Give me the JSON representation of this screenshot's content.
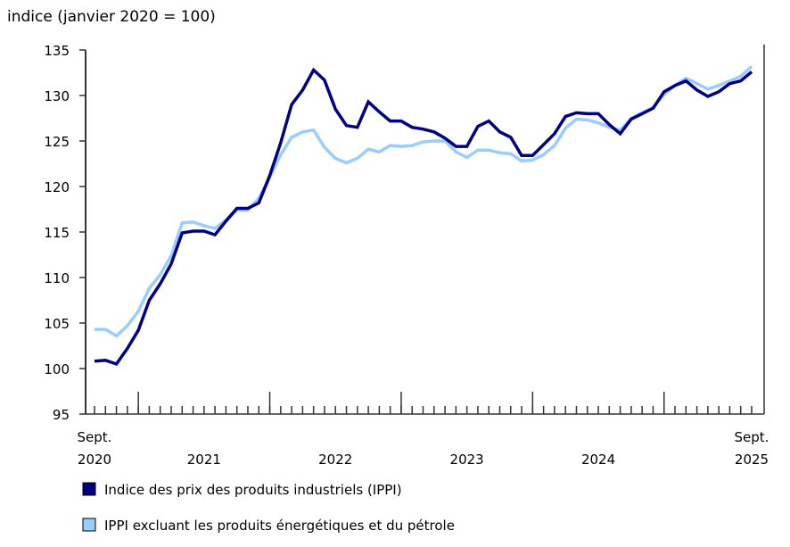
{
  "chart_data": {
    "type": "line",
    "ylabel": "indice (janvier 2020 = 100)",
    "ylim": [
      95,
      135
    ],
    "yticks": [
      95,
      100,
      105,
      110,
      115,
      120,
      125,
      130,
      135
    ],
    "x_start": "2020-09",
    "x_end": "2025-09",
    "x_tick_labels": [
      {
        "month": "2020-09",
        "line1": "Sept.",
        "line2": "2020"
      },
      {
        "month": "2021-07",
        "line1": "",
        "line2": "2021"
      },
      {
        "month": "2022-07",
        "line1": "",
        "line2": "2022"
      },
      {
        "month": "2023-07",
        "line1": "",
        "line2": "2023"
      },
      {
        "month": "2024-07",
        "line1": "",
        "line2": "2024"
      },
      {
        "month": "2025-09",
        "line1": "Sept.",
        "line2": "2025"
      }
    ],
    "grid": false,
    "legend_position": "bottom",
    "series": [
      {
        "name": "Indice des prix des produits industriels (IPPI)",
        "color": "#000080",
        "values": [
          100.8,
          100.9,
          100.5,
          102.2,
          104.2,
          107.5,
          109.3,
          111.5,
          114.9,
          115.1,
          115.1,
          114.7,
          116.2,
          117.6,
          117.6,
          118.2,
          121.2,
          124.8,
          129.0,
          130.6,
          132.8,
          131.7,
          128.5,
          126.7,
          126.5,
          129.3,
          128.2,
          127.2,
          127.2,
          126.5,
          126.3,
          126.0,
          125.3,
          124.4,
          124.4,
          126.6,
          127.2,
          126.0,
          125.4,
          123.4,
          123.4,
          124.6,
          125.8,
          127.7,
          128.1,
          128.0,
          128.0,
          126.8,
          125.8,
          127.4,
          128.0,
          128.6,
          130.4,
          131.1,
          131.6,
          130.6,
          129.9,
          130.4,
          131.3,
          131.6,
          132.6
        ]
      },
      {
        "name": "IPPI excluant les produits énergétiques et du pétrole",
        "color": "#99ccff",
        "values": [
          104.3,
          104.3,
          103.6,
          104.7,
          106.3,
          108.8,
          110.3,
          112.4,
          116.0,
          116.1,
          115.7,
          115.4,
          116.3,
          117.4,
          117.4,
          118.7,
          121.0,
          123.5,
          125.4,
          126.0,
          126.2,
          124.3,
          123.1,
          122.6,
          123.1,
          124.1,
          123.8,
          124.5,
          124.4,
          124.5,
          124.9,
          125.0,
          125.0,
          123.8,
          123.2,
          124.0,
          124.0,
          123.7,
          123.6,
          122.8,
          122.9,
          123.5,
          124.5,
          126.4,
          127.4,
          127.3,
          127.0,
          126.5,
          126.2,
          127.5,
          128.1,
          128.7,
          130.1,
          131.1,
          131.9,
          131.3,
          130.7,
          131.1,
          131.6,
          132.1,
          133.2
        ]
      }
    ]
  }
}
